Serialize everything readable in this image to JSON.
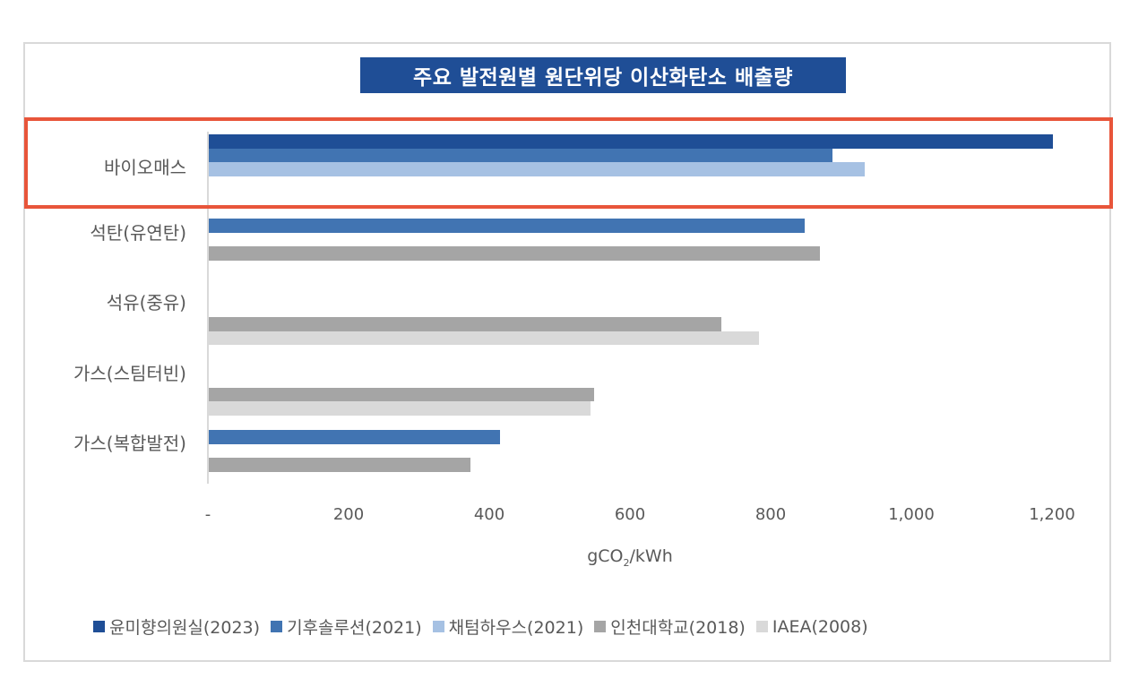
{
  "chart_data": {
    "type": "bar",
    "orientation": "horizontal",
    "title": "주요 발전원별 원단위당 이산화탄소 배출량",
    "xlabel": "gCO2/kWh",
    "ylabel": "",
    "xlim": [
      0,
      1200
    ],
    "x_ticks": [
      "-",
      "200",
      "400",
      "600",
      "800",
      "1,000",
      "1,200"
    ],
    "grid": false,
    "legend_position": "bottom",
    "categories": [
      "바이오매스",
      "석탄(유연탄)",
      "석유(중유)",
      "가스(스팀터빈)",
      "가스(복합발전)"
    ],
    "series": [
      {
        "name": "윤미향의원실(2023)",
        "color": "#1f4e96",
        "values": [
          1200,
          null,
          null,
          null,
          null
        ]
      },
      {
        "name": "기후솔루션(2021)",
        "color": "#4174b2",
        "values": [
          887,
          847,
          null,
          null,
          414
        ]
      },
      {
        "name": "채텀하우스(2021)",
        "color": "#a6c1e3",
        "values": [
          932,
          null,
          null,
          null,
          null
        ]
      },
      {
        "name": "인천대학교(2018)",
        "color": "#a5a5a5",
        "values": [
          null,
          869,
          729,
          548,
          372
        ]
      },
      {
        "name": "IAEA(2008)",
        "color": "#d9d9d9",
        "values": [
          null,
          null,
          782,
          543,
          null
        ]
      }
    ],
    "highlight": {
      "category": "바이오매스",
      "color": "#e8553a"
    }
  },
  "title": "주요 발전원별 원단위당 이산화탄소 배출량",
  "categories": [
    "바이오매스",
    "석탄(유연탄)",
    "석유(중유)",
    "가스(스팀터빈)",
    "가스(복합발전)"
  ],
  "ticks": [
    "-",
    "200",
    "400",
    "600",
    "800",
    "1,000",
    "1,200"
  ],
  "xlabel": {
    "pre": "gCO",
    "sub": "2",
    "post": "/kWh"
  },
  "legend": [
    "윤미향의원실(2023)",
    "기후솔루션(2021)",
    "채텀하우스(2021)",
    "인천대학교(2018)",
    "IAEA(2008)"
  ]
}
